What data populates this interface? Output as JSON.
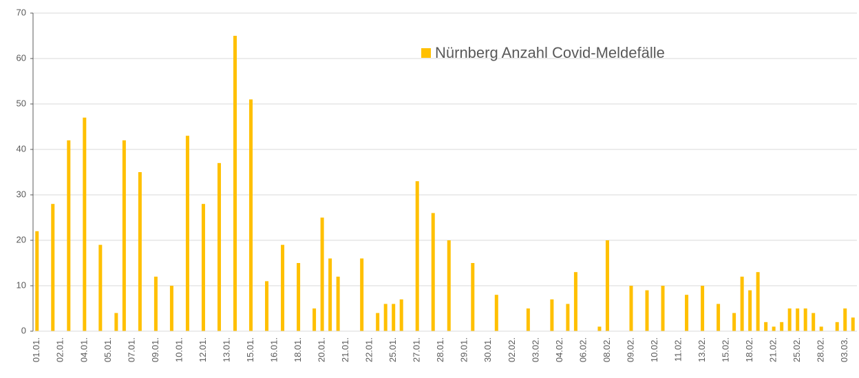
{
  "chart_data": {
    "type": "bar",
    "categories": [
      "01.01.",
      null,
      null,
      "02.01.",
      null,
      null,
      "04.01.",
      null,
      null,
      "05.01.",
      null,
      null,
      "07.01.",
      null,
      null,
      "09.01.",
      null,
      null,
      "10.01.",
      null,
      null,
      "12.01.",
      null,
      null,
      "13.01.",
      null,
      null,
      "15.01.",
      null,
      null,
      "16.01.",
      null,
      null,
      "18.01.",
      null,
      null,
      "20.01.",
      null,
      null,
      "21.01.",
      null,
      null,
      "22.01.",
      null,
      null,
      "25.01.",
      null,
      null,
      "27.01.",
      null,
      null,
      "28.01.",
      null,
      null,
      "29.01.",
      null,
      null,
      "30.01.",
      null,
      null,
      "02.02.",
      null,
      null,
      "03.02.",
      null,
      null,
      "04.02.",
      null,
      null,
      "06.02.",
      null,
      null,
      "08.02.",
      null,
      null,
      "09.02.",
      null,
      null,
      "10.02.",
      null,
      null,
      "11.02.",
      null,
      null,
      "13.02.",
      null,
      null,
      "15.02.",
      null,
      null,
      "18.02.",
      null,
      null,
      "21.02.",
      null,
      null,
      "25.02.",
      null,
      null,
      "28.02.",
      null,
      null,
      "03.03.",
      null
    ],
    "series": [
      {
        "name": "Nürnberg Anzahl Covid-Meldefälle",
        "color": "#ffc000",
        "values": [
          22,
          0,
          28,
          0,
          42,
          0,
          47,
          0,
          19,
          0,
          4,
          42,
          0,
          35,
          0,
          12,
          0,
          10,
          0,
          43,
          0,
          28,
          0,
          37,
          0,
          65,
          0,
          51,
          0,
          11,
          0,
          19,
          0,
          15,
          0,
          5,
          25,
          16,
          12,
          0,
          0,
          16,
          0,
          4,
          6,
          6,
          7,
          0,
          33,
          0,
          26,
          0,
          20,
          0,
          0,
          15,
          0,
          0,
          8,
          0,
          0,
          0,
          5,
          0,
          0,
          7,
          0,
          6,
          13,
          0,
          0,
          1,
          20,
          0,
          0,
          10,
          0,
          9,
          0,
          10,
          0,
          0,
          8,
          0,
          10,
          0,
          6,
          0,
          4,
          12,
          9,
          13,
          2,
          1,
          2,
          5,
          5,
          5,
          4,
          1,
          0,
          2,
          5,
          3
        ]
      }
    ],
    "ylim": [
      0,
      70
    ],
    "yticks": [
      0,
      10,
      20,
      30,
      40,
      50,
      60,
      70
    ],
    "grid": true,
    "legend": "top-right"
  }
}
